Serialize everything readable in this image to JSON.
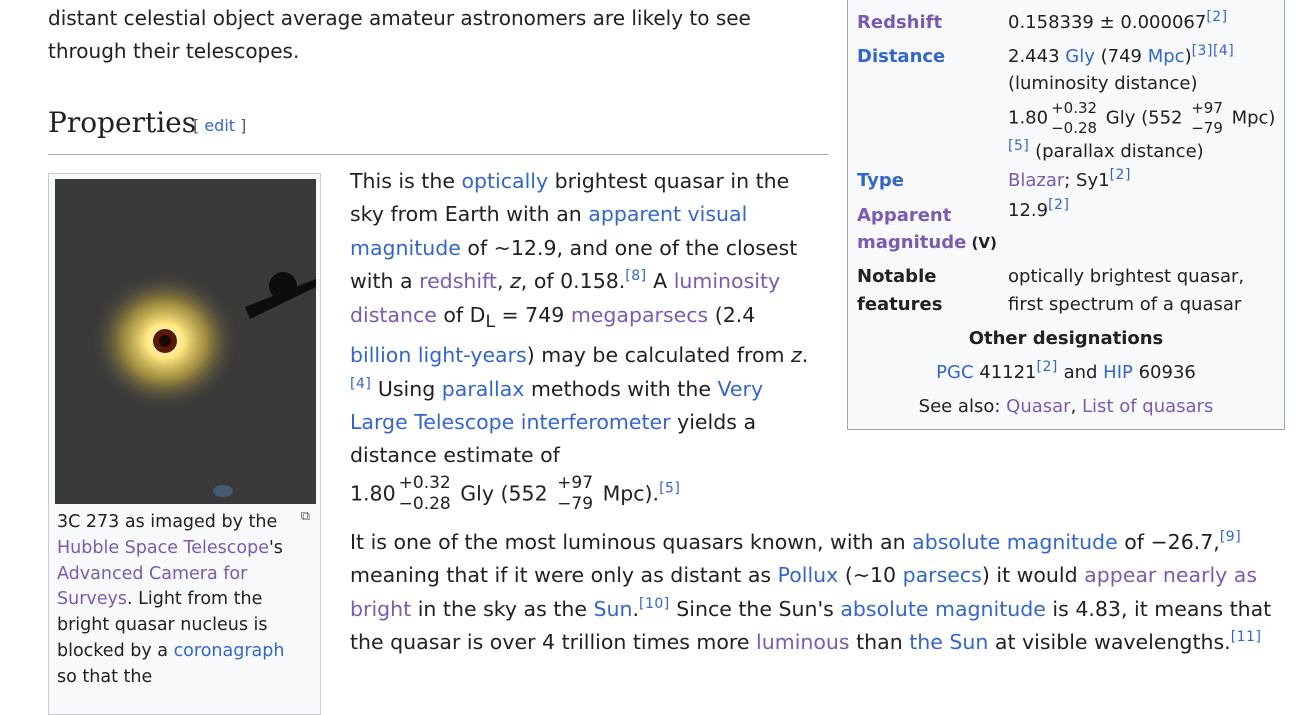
{
  "intro": {
    "line1": "distant celestial object average amateur astronomers are likely to see",
    "line2": "through their telescopes."
  },
  "section": {
    "title": "Properties",
    "edit_open": "[ ",
    "edit_label": "edit",
    "edit_close": " ]"
  },
  "thumbnail": {
    "enlarge_icon": "enlarge-icon",
    "caption": {
      "t1": "3C 273 as imaged by the ",
      "l1": "Hubble Space Telescope",
      "t2": "'s ",
      "l2": "Advanced Camera for Surveys",
      "t3": ". Light from the bright quasar nucleus is blocked by a ",
      "l3": "coronagraph",
      "t4": " so that the"
    }
  },
  "p1": {
    "t1": "This is the ",
    "l1": "optically",
    "t2": " brightest quasar in the sky from Earth with an ",
    "l2": "apparent visual magnitude",
    "t3": " of ~12.9, and one of the closest with a ",
    "l3": "redshift",
    "t4": ", ",
    "z1": "z",
    "t5": ", of 0.158.",
    "r1": "[8]",
    "t6": " A ",
    "l4": "luminosity distance",
    "t7": " of D",
    "sub_l": "L",
    "t8": " = 749 ",
    "l5": "megaparsecs",
    "t9": " (2.4 ",
    "l6": "billion light-years",
    "t10": ") may be calculated from ",
    "z2": "z",
    "t11": ".",
    "r2": "[4]",
    "t12": " Using ",
    "l7": "parallax",
    "t13": " methods with the ",
    "l8": "Very Large Telescope interferometer",
    "t14": " yields a distance estimate of",
    "d_val": "1.80",
    "d_up": "+0.32",
    "d_down": "−0.28",
    "d_gly": " Gly (552 ",
    "d_up2": "+97",
    "d_down2": "−79",
    "d_mpc": " Mpc).",
    "r3": "[5]"
  },
  "p2": {
    "t1": "It is one of the most luminous quasars known, with an ",
    "l1": "absolute magnitude",
    "t2": " of −26.7,",
    "r1": "[9]",
    "t3": " meaning that if it were only as distant as ",
    "l2": "Pollux",
    "t4": " (~10 ",
    "l3": "parsecs",
    "t5": ") it would ",
    "l4": "appear nearly as bright",
    "t6": " in the sky as the ",
    "l5": "Sun",
    "t7": ".",
    "r2": "[10]",
    "t8": " Since the Sun's ",
    "l6": "absolute magnitude",
    "t9": " is 4.83, it means that the quasar is over 4 trillion times more ",
    "l7": "luminous",
    "t10": " than ",
    "l8": "the Sun",
    "t11": " at visible wavelengths.",
    "r3": "[11]"
  },
  "infobox": {
    "redshift_label": "Redshift",
    "redshift_value": "0.158339 ± 0.000067",
    "redshift_ref": "[2]",
    "distance_label": "Distance",
    "dist_v1": "2.443 ",
    "dist_gly": "Gly",
    "dist_v2": " (749 ",
    "dist_mpc": "Mpc",
    "dist_v3": ")",
    "dist_ref1": "[3]",
    "dist_ref2": "[4]",
    "dist_lum": "(luminosity distance)",
    "dist_p_val": "1.80",
    "dist_p_up": "+0.32",
    "dist_p_down": "−0.28",
    "dist_p_gly": " Gly (552 ",
    "dist_p_up2": "+97",
    "dist_p_down2": "−79",
    "dist_p_mpc": " Mpc)",
    "dist_ref3": "[5]",
    "dist_par": " (parallax distance)",
    "type_label": "Type",
    "type_link": "Blazar",
    "type_rest": "; Sy1",
    "type_ref": "[2]",
    "app_label": "Apparent magnitude",
    "app_label_v": " (V)",
    "app_value": "12.9",
    "app_ref": "[2]",
    "notable_label": "Notable features",
    "notable_value": "optically brightest quasar, first spectrum of a quasar",
    "other_title": "Other designations",
    "pgc_link": "PGC",
    "pgc_num": " 41121",
    "pgc_ref": "[2]",
    "and_text": " and ",
    "hip_link": "HIP",
    "hip_num": " 60936",
    "see_also_label": "See also: ",
    "see_also_1": "Quasar",
    "see_also_sep": ", ",
    "see_also_2": "List of quasars"
  }
}
